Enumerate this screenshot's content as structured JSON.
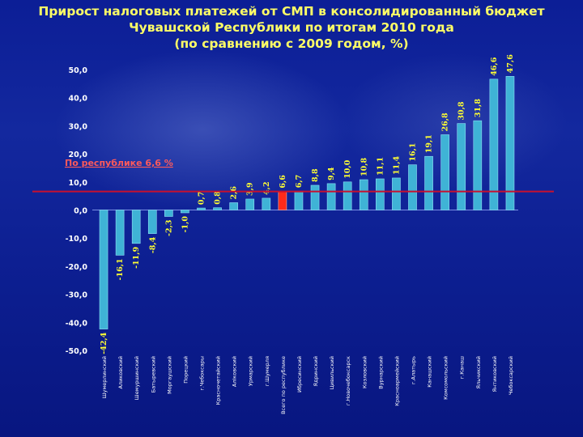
{
  "title_lines": [
    "Прирост налоговых платежей от СМП в консолидированный бюджет",
    "Чувашской Республики по итогам 2010 года",
    "(по сравнению с 2009 годом, %)"
  ],
  "colors": {
    "bar": "#3fb3d6",
    "bar_highlight": "#ff2a1a",
    "reference_line": "#c8102e",
    "title": "#ffff66",
    "axis_text": "#ffffff",
    "data_label": "#ffff33"
  },
  "chart_data": {
    "type": "bar",
    "title": "Прирост налоговых платежей от СМП в консолидированный бюджет Чувашской Республики по итогам 2010 года (по сравнению с 2009 годом, %)",
    "categories": [
      "Шумерлинский",
      "Аликовский",
      "Шемуршинский",
      "Батыревский",
      "Моргаушский",
      "Порецкий",
      "г.Чебоксары",
      "Красночетайский",
      "Аліковский",
      "Урмарский",
      "г.Шумерля",
      "Всего по республике",
      "Ибресинский",
      "Ядринский",
      "Цивильский",
      "г.Новочебоксарск",
      "Козловский",
      "Вурнарский",
      "Красноармейский",
      "г.Алатырь",
      "Канашский",
      "Комсомольский",
      "г.Канаш",
      "Яльчикский",
      "Янтиковский",
      "Чебоксарский"
    ],
    "values": [
      -42.4,
      -16.1,
      -11.9,
      -8.4,
      -2.3,
      -1.0,
      0.7,
      0.8,
      2.6,
      3.9,
      4.2,
      6.6,
      6.7,
      8.8,
      9.4,
      10.0,
      10.8,
      11.1,
      11.4,
      16.1,
      19.1,
      26.8,
      30.8,
      31.8,
      46.6,
      47.6
    ],
    "highlight_category": "Всего по республике",
    "reference_line": {
      "value": 6.6,
      "label": "По республике 6,6 %"
    },
    "ylim": [
      -50,
      50
    ],
    "yticks": [
      "50,0",
      "40,0",
      "30,0",
      "20,0",
      "10,0",
      "0,0",
      "-10,0",
      "-20,0",
      "-30,0",
      "-40,0",
      "-50,0"
    ],
    "value_labels": [
      "-42,4",
      "-16,1",
      "-11,9",
      "-8,4",
      "-2,3",
      "-1,0",
      "0,7",
      "0,8",
      "2,6",
      "3,9",
      "4,2",
      "6,6",
      "6,7",
      "8,8",
      "9,4",
      "10,0",
      "10,8",
      "11,1",
      "11,4",
      "16,1",
      "19,1",
      "26,8",
      "30,8",
      "31,8",
      "46,6",
      "47,6"
    ],
    "grid": false,
    "legend": "none"
  }
}
